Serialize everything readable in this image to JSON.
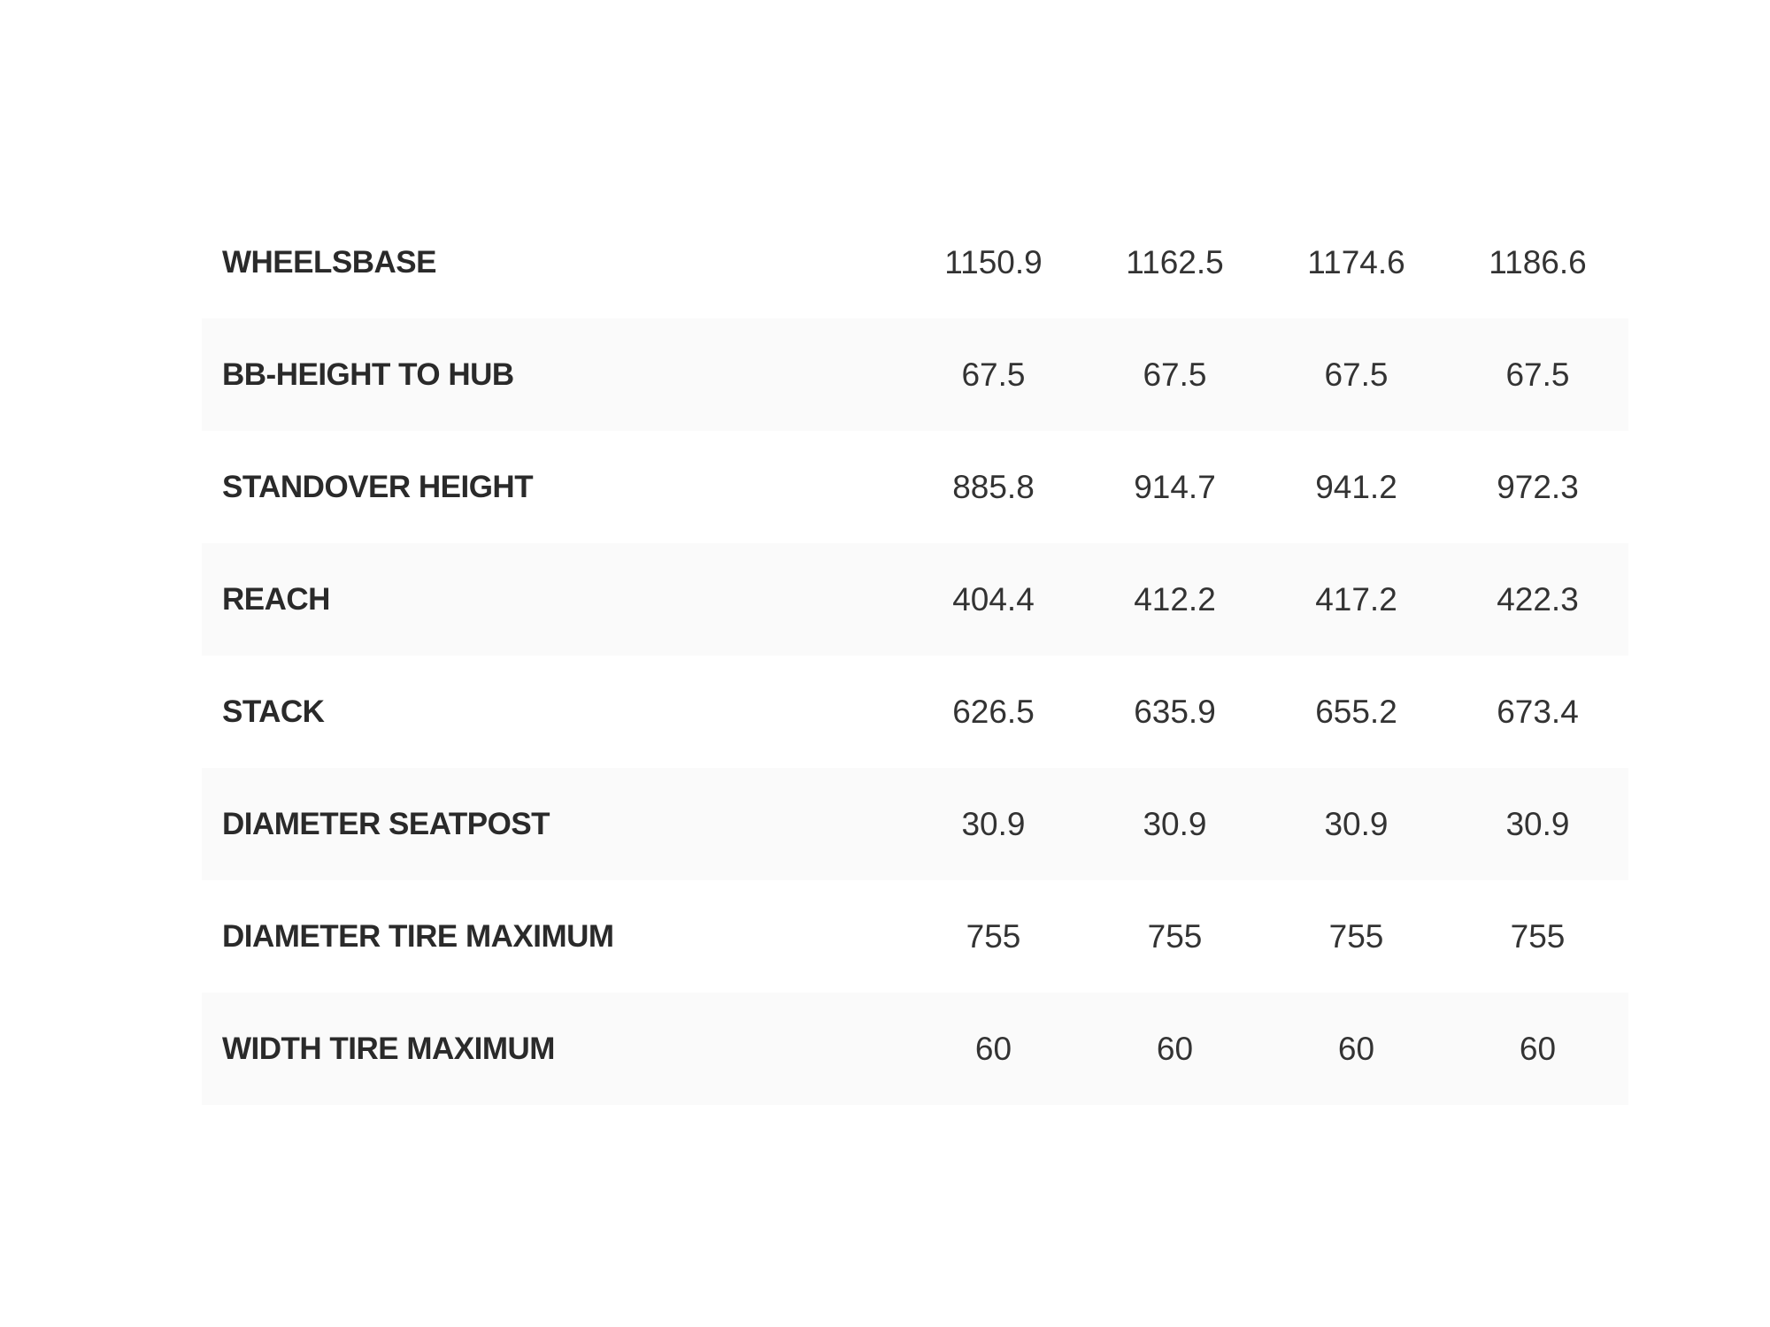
{
  "geometry_table": {
    "rows": [
      {
        "label": "WHEELSBASE",
        "values": [
          "1150.9",
          "1162.5",
          "1174.6",
          "1186.6"
        ]
      },
      {
        "label": "BB-HEIGHT TO HUB",
        "values": [
          "67.5",
          "67.5",
          "67.5",
          "67.5"
        ]
      },
      {
        "label": "STANDOVER HEIGHT",
        "values": [
          "885.8",
          "914.7",
          "941.2",
          "972.3"
        ]
      },
      {
        "label": "REACH",
        "values": [
          "404.4",
          "412.2",
          "417.2",
          "422.3"
        ]
      },
      {
        "label": "STACK",
        "values": [
          "626.5",
          "635.9",
          "655.2",
          "673.4"
        ]
      },
      {
        "label": "DIAMETER SEATPOST",
        "values": [
          "30.9",
          "30.9",
          "30.9",
          "30.9"
        ]
      },
      {
        "label": "DIAMETER TIRE MAXIMUM",
        "values": [
          "755",
          "755",
          "755",
          "755"
        ]
      },
      {
        "label": "WIDTH TIRE MAXIMUM",
        "values": [
          "60",
          "60",
          "60",
          "60"
        ]
      }
    ],
    "colors": {
      "stripe_background": "#fafafa",
      "text": "#2b2b2b"
    }
  }
}
